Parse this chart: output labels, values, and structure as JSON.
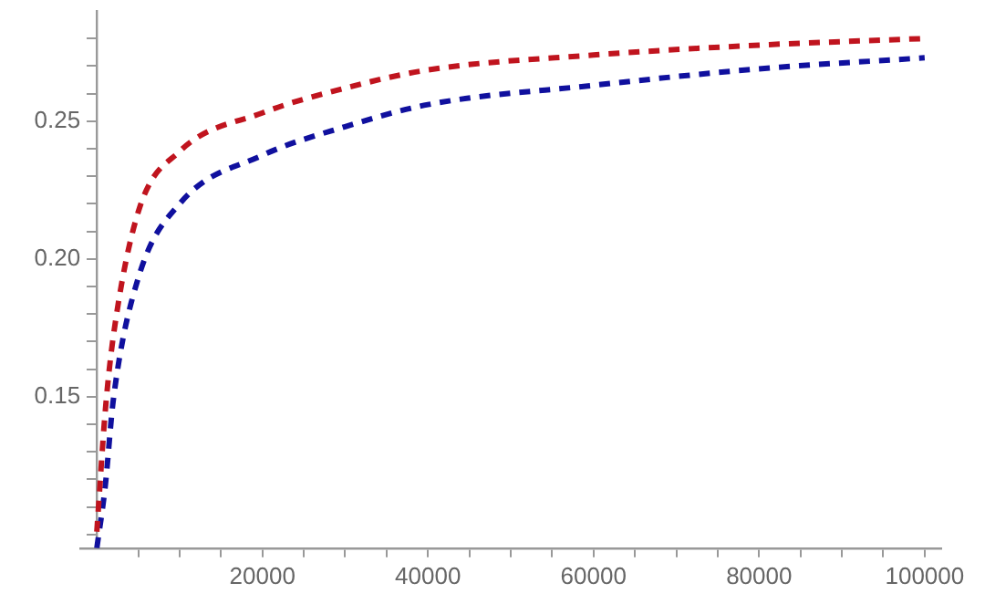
{
  "chart_data": {
    "type": "line",
    "line_style": "dashed",
    "marker": "none",
    "xlim": [
      -2000,
      102000
    ],
    "ylim": [
      0.095,
      0.29
    ],
    "xticks": [
      {
        "value": 5000,
        "label": null
      },
      {
        "value": 10000,
        "label": null
      },
      {
        "value": 15000,
        "label": null
      },
      20000,
      {
        "value": 25000,
        "label": null
      },
      {
        "value": 30000,
        "label": null
      },
      {
        "value": 35000,
        "label": null
      },
      40000,
      {
        "value": 45000,
        "label": null
      },
      {
        "value": 50000,
        "label": null
      },
      {
        "value": 55000,
        "label": null
      },
      60000,
      {
        "value": 65000,
        "label": null
      },
      {
        "value": 70000,
        "label": null
      },
      {
        "value": 75000,
        "label": null
      },
      80000,
      {
        "value": 85000,
        "label": null
      },
      {
        "value": 90000,
        "label": null
      },
      {
        "value": 95000,
        "label": null
      },
      100000
    ],
    "yticks": [
      {
        "value": 0.1,
        "label": null
      },
      {
        "value": 0.11,
        "label": null
      },
      {
        "value": 0.12,
        "label": null
      },
      {
        "value": 0.13,
        "label": null
      },
      {
        "value": 0.14,
        "label": null
      },
      0.15,
      {
        "value": 0.16,
        "label": null
      },
      {
        "value": 0.17,
        "label": null
      },
      {
        "value": 0.18,
        "label": null
      },
      {
        "value": 0.19,
        "label": null
      },
      {
        "value": 0.2,
        "label": "0.20"
      },
      {
        "value": 0.21,
        "label": null
      },
      {
        "value": 0.22,
        "label": null
      },
      {
        "value": 0.23,
        "label": null
      },
      {
        "value": 0.24,
        "label": null
      },
      0.25,
      {
        "value": 0.26,
        "label": null
      },
      {
        "value": 0.27,
        "label": null
      },
      {
        "value": 0.28,
        "label": null
      }
    ],
    "series": [
      {
        "color": "#c0141e",
        "x": [
          0,
          1000,
          2000,
          5000,
          10000,
          20000,
          30000,
          40000,
          60000,
          80000,
          100000
        ],
        "values": [
          0.101,
          0.144,
          0.172,
          0.217,
          0.239,
          0.253,
          0.262,
          0.2686,
          0.274,
          0.2776,
          0.28
        ]
      },
      {
        "color": "#10109e",
        "x": [
          0,
          1000,
          2000,
          5000,
          10000,
          20000,
          30000,
          40000,
          60000,
          80000,
          100000
        ],
        "values": [
          0.095,
          0.117,
          0.149,
          0.193,
          0.22,
          0.2376,
          0.248,
          0.256,
          0.263,
          0.269,
          0.273
        ]
      }
    ]
  }
}
